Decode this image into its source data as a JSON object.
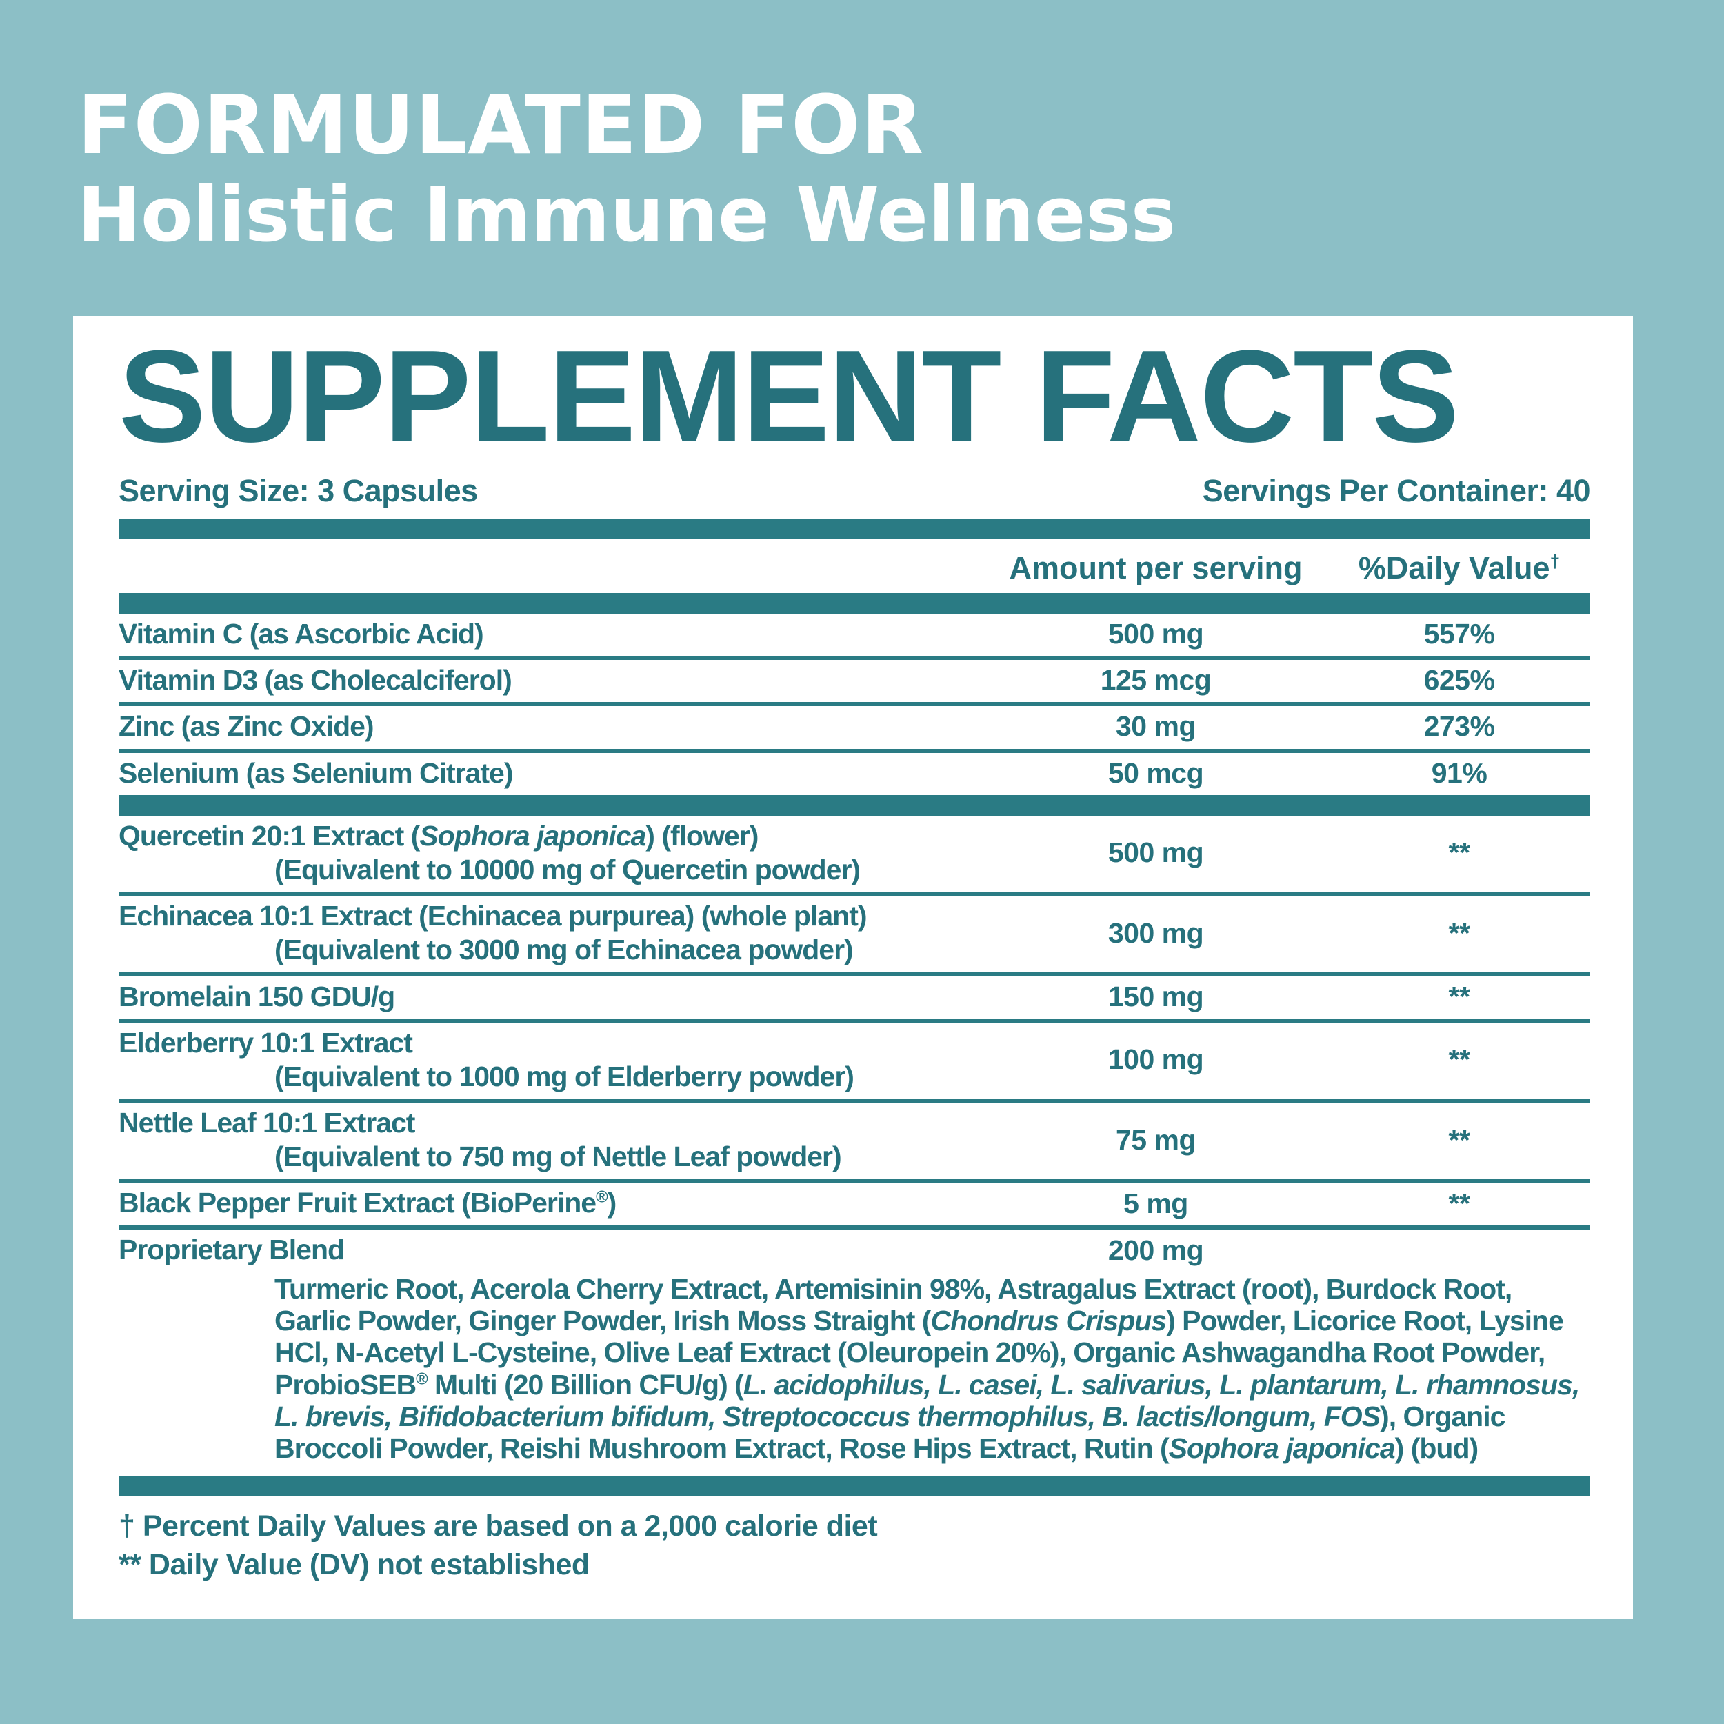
{
  "colors": {
    "background": "#8CBFC6",
    "panel": "#FFFFFF",
    "ink": "#26717C",
    "bar": "#2A7B84",
    "header_text": "#FFFFFF"
  },
  "header": {
    "line1": "FORMULATED FOR",
    "line2": "Holistic Immune Wellness"
  },
  "panel": {
    "title": "SUPPLEMENT FACTS",
    "serving_size": "Serving Size: 3 Capsules",
    "servings_per_container": "Servings Per Container: 40",
    "columns": {
      "amount": "Amount per serving",
      "dv": "%Daily Value",
      "dv_mark": "†"
    },
    "rows": [
      {
        "no_sep": true,
        "name": [
          {
            "t": "Vitamin C (as Ascorbic Acid)"
          }
        ],
        "amount": "500 mg",
        "dv": "557%"
      },
      {
        "name": [
          {
            "t": "Vitamin D3 (as Cholecalciferol)"
          }
        ],
        "amount": "125 mcg",
        "dv": "625%"
      },
      {
        "name": [
          {
            "t": "Zinc (as Zinc Oxide)"
          }
        ],
        "amount": "30 mg",
        "dv": "273%"
      },
      {
        "name": [
          {
            "t": "Selenium (as Selenium Citrate)"
          }
        ],
        "amount": "50 mcg",
        "dv": "91%",
        "thick_after": true
      },
      {
        "no_sep": true,
        "name": [
          {
            "t": "Quercetin 20:1 Extract ("
          },
          {
            "t": "Sophora japonica",
            "i": true
          },
          {
            "t": ") (flower)"
          }
        ],
        "sub": [
          {
            "t": "(Equivalent to 10000 mg of Quercetin powder)"
          }
        ],
        "amount": "500 mg",
        "dv": "**"
      },
      {
        "name": [
          {
            "t": "Echinacea 10:1 Extract (Echinacea purpurea) (whole plant)"
          }
        ],
        "sub": [
          {
            "t": "(Equivalent to 3000 mg of Echinacea powder)"
          }
        ],
        "amount": "300 mg",
        "dv": "**"
      },
      {
        "name": [
          {
            "t": "Bromelain 150 GDU/g"
          }
        ],
        "amount": "150 mg",
        "dv": "**"
      },
      {
        "name": [
          {
            "t": "Elderberry 10:1 Extract"
          }
        ],
        "sub": [
          {
            "t": "(Equivalent to 1000 mg of Elderberry powder)"
          }
        ],
        "amount": "100 mg",
        "dv": "**"
      },
      {
        "name": [
          {
            "t": "Nettle Leaf 10:1 Extract"
          }
        ],
        "sub": [
          {
            "t": "(Equivalent to 750 mg of Nettle Leaf powder)"
          }
        ],
        "amount": "75 mg",
        "dv": "**"
      },
      {
        "name": [
          {
            "t": "Black Pepper Fruit Extract (BioPerine"
          },
          {
            "t": "®",
            "sup": true
          },
          {
            "t": ")"
          }
        ],
        "amount": "5 mg",
        "dv": "**"
      },
      {
        "name": [
          {
            "t": "Proprietary Blend"
          }
        ],
        "amount": "200 mg",
        "dv": "",
        "blend": [
          {
            "t": "Turmeric Root, Acerola Cherry Extract, Artemisinin 98%, Astragalus Extract (root), Burdock Root, Garlic Powder, Ginger Powder, Irish Moss Straight ("
          },
          {
            "t": "Chondrus Crispus",
            "i": true
          },
          {
            "t": ") Powder, Licorice Root, Lysine HCl, N-Acetyl L-Cysteine, Olive Leaf Extract (Oleuropein 20%), Organic Ashwagandha Root Powder, ProbioSEB"
          },
          {
            "t": "®",
            "sup": true
          },
          {
            "t": " Multi (20 Billion CFU/g) ("
          },
          {
            "t": "L. acidophilus, L. casei, L. salivarius, L. plantarum, L. rhamnosus, L. brevis, Bifidobacterium bifidum, Streptococcus thermophilus, B. lactis/longum, FOS",
            "i": true
          },
          {
            "t": "), Organic Broccoli Powder, Reishi Mushroom Extract, Rose Hips Extract, Rutin ("
          },
          {
            "t": "Sophora japonica",
            "i": true
          },
          {
            "t": ") (bud)"
          }
        ]
      }
    ],
    "footnotes": [
      "† Percent Daily Values are based on a 2,000 calorie diet",
      "** Daily Value (DV) not established"
    ]
  }
}
